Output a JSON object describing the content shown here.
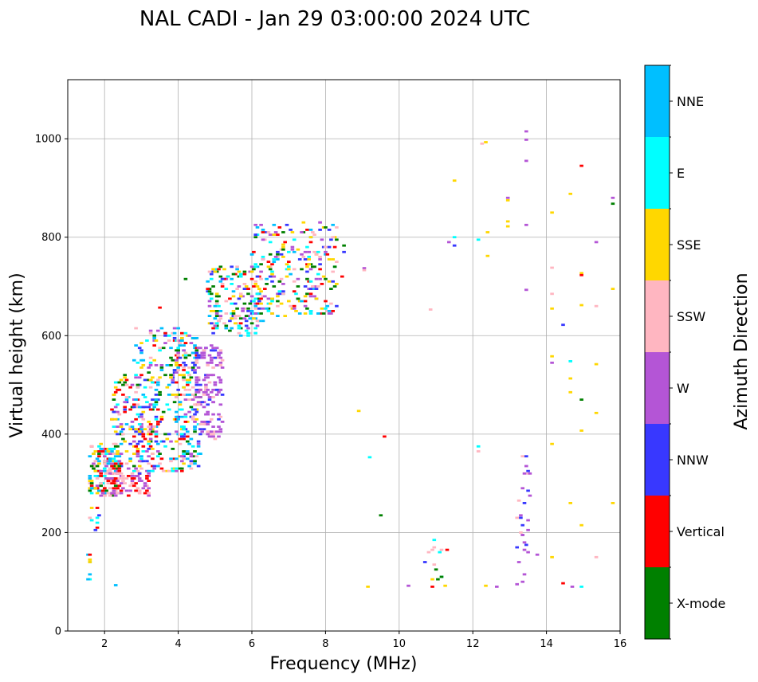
{
  "chart_data": {
    "type": "scatter",
    "title": "NAL CADI - Jan 29 03:00:00 2024 UTC",
    "xlabel": "Frequency (MHz)",
    "ylabel": "Virtual height (km)",
    "xlim": [
      1,
      16
    ],
    "ylim": [
      0,
      1120
    ],
    "xticks": [
      2,
      4,
      6,
      8,
      10,
      12,
      14,
      16
    ],
    "yticks": [
      0,
      200,
      400,
      600,
      800,
      1000
    ],
    "grid": true,
    "colorbar": {
      "label": "Azimuth Direction",
      "categories": [
        {
          "name": "X-mode",
          "color": "#008000"
        },
        {
          "name": "Vertical",
          "color": "#ff0000"
        },
        {
          "name": "NNW",
          "color": "#3838ff"
        },
        {
          "name": "W",
          "color": "#b455d6"
        },
        {
          "name": "SSW",
          "color": "#ffb6c1"
        },
        {
          "name": "SSE",
          "color": "#ffd700"
        },
        {
          "name": "E",
          "color": "#00ffff"
        },
        {
          "name": "NNE",
          "color": "#00bfff"
        }
      ]
    },
    "clusters": [
      {
        "f": [
          1.55,
          1.62
        ],
        "h": [
          90,
          165
        ],
        "n": 8,
        "mix": [
          "Vertical",
          "SSE",
          "E",
          "NNE",
          "SSW"
        ]
      },
      {
        "f": [
          1.55,
          1.85
        ],
        "h": [
          200,
          270
        ],
        "n": 10,
        "mix": [
          "Vertical",
          "SSE",
          "E",
          "NNW",
          "SSW"
        ]
      },
      {
        "f": [
          1.6,
          2.4
        ],
        "h": [
          275,
          380
        ],
        "n": 170,
        "mix": [
          "Vertical",
          "SSE",
          "NNE",
          "SSW",
          "W",
          "E",
          "X-mode"
        ]
      },
      {
        "f": [
          2.0,
          3.3
        ],
        "h": [
          275,
          330
        ],
        "n": 90,
        "mix": [
          "SSW",
          "Vertical",
          "W"
        ]
      },
      {
        "f": [
          2.2,
          3.5
        ],
        "h": [
          330,
          520
        ],
        "n": 180,
        "mix": [
          "Vertical",
          "SSE",
          "E",
          "NNE",
          "SSW",
          "W",
          "X-mode",
          "NNW"
        ]
      },
      {
        "f": [
          2.8,
          4.3
        ],
        "h": [
          320,
          620
        ],
        "n": 200,
        "mix": [
          "Vertical",
          "E",
          "NNE",
          "SSE",
          "X-mode",
          "SSW",
          "W",
          "NNW"
        ]
      },
      {
        "f": [
          3.9,
          4.6
        ],
        "h": [
          330,
          600
        ],
        "n": 180,
        "mix": [
          "X-mode",
          "E",
          "Vertical",
          "SSE",
          "NNE",
          "W",
          "NNW",
          "SSW"
        ]
      },
      {
        "f": [
          4.4,
          5.2
        ],
        "h": [
          390,
          580
        ],
        "n": 150,
        "mix": [
          "W",
          "W",
          "W",
          "SSW",
          "NNW"
        ]
      },
      {
        "f": [
          4.8,
          6.3
        ],
        "h": [
          600,
          740
        ],
        "n": 180,
        "mix": [
          "NNW",
          "NNE",
          "E",
          "W",
          "SSE",
          "Vertical",
          "SSW",
          "X-mode"
        ]
      },
      {
        "f": [
          6.0,
          8.3
        ],
        "h": [
          640,
          830
        ],
        "n": 250,
        "mix": [
          "NNW",
          "W",
          "NNE",
          "E",
          "Vertical",
          "X-mode",
          "SSW",
          "SSE"
        ]
      },
      {
        "f": [
          13.2,
          13.6
        ],
        "h": [
          90,
          370
        ],
        "n": 30,
        "mix": [
          "W",
          "NNW",
          "W",
          "SSW"
        ]
      },
      {
        "f": [
          10.9,
          11.2
        ],
        "h": [
          90,
          190
        ],
        "n": 12,
        "mix": [
          "SSE",
          "E",
          "Vertical",
          "SSW",
          "X-mode"
        ]
      }
    ],
    "points": [
      [
        8.5,
        783,
        "X-mode"
      ],
      [
        8.5,
        770,
        "NNW"
      ],
      [
        8.45,
        720,
        "Vertical"
      ],
      [
        9.05,
        737,
        "W"
      ],
      [
        9.05,
        733,
        "SSW"
      ],
      [
        8.9,
        447,
        "SSE"
      ],
      [
        9.5,
        235,
        "X-mode"
      ],
      [
        9.2,
        353,
        "E"
      ],
      [
        9.6,
        395,
        "Vertical"
      ],
      [
        9.15,
        90,
        "SSE"
      ],
      [
        10.25,
        92,
        "W"
      ],
      [
        10.7,
        140,
        "NNW"
      ],
      [
        10.8,
        160,
        "SSW"
      ],
      [
        10.85,
        653,
        "SSW"
      ],
      [
        11.5,
        915,
        "SSE"
      ],
      [
        11.5,
        783,
        "NNW"
      ],
      [
        11.5,
        800,
        "E"
      ],
      [
        11.35,
        790,
        "W"
      ],
      [
        11.25,
        92,
        "SSE"
      ],
      [
        11.3,
        165,
        "Vertical"
      ],
      [
        12.25,
        990,
        "SSW"
      ],
      [
        12.35,
        993,
        "SSE"
      ],
      [
        12.15,
        795,
        "E"
      ],
      [
        12.4,
        810,
        "SSE"
      ],
      [
        12.4,
        762,
        "SSE"
      ],
      [
        12.15,
        375,
        "E"
      ],
      [
        12.15,
        365,
        "SSW"
      ],
      [
        12.35,
        92,
        "SSE"
      ],
      [
        12.65,
        90,
        "W"
      ],
      [
        12.95,
        880,
        "W"
      ],
      [
        12.95,
        875,
        "SSE"
      ],
      [
        12.95,
        832,
        "SSE"
      ],
      [
        12.95,
        822,
        "SSE"
      ],
      [
        13.45,
        1015,
        "W"
      ],
      [
        13.45,
        998,
        "W"
      ],
      [
        13.45,
        955,
        "W"
      ],
      [
        13.45,
        825,
        "W"
      ],
      [
        13.45,
        693,
        "W"
      ],
      [
        13.75,
        155,
        "W"
      ],
      [
        14.15,
        850,
        "SSE"
      ],
      [
        14.15,
        738,
        "SSW"
      ],
      [
        14.15,
        685,
        "SSW"
      ],
      [
        14.15,
        655,
        "SSE"
      ],
      [
        14.15,
        558,
        "SSE"
      ],
      [
        14.15,
        545,
        "W"
      ],
      [
        14.15,
        380,
        "SSE"
      ],
      [
        14.15,
        150,
        "SSE"
      ],
      [
        14.45,
        622,
        "NNW"
      ],
      [
        14.45,
        97,
        "Vertical"
      ],
      [
        14.65,
        888,
        "SSE"
      ],
      [
        14.65,
        548,
        "E"
      ],
      [
        14.65,
        513,
        "SSE"
      ],
      [
        14.65,
        485,
        "SSE"
      ],
      [
        14.65,
        260,
        "SSE"
      ],
      [
        14.7,
        90,
        "W"
      ],
      [
        14.95,
        945,
        "Vertical"
      ],
      [
        14.95,
        727,
        "SSE"
      ],
      [
        14.95,
        723,
        "Vertical"
      ],
      [
        14.95,
        662,
        "SSE"
      ],
      [
        14.95,
        470,
        "X-mode"
      ],
      [
        14.95,
        407,
        "SSE"
      ],
      [
        14.95,
        215,
        "SSE"
      ],
      [
        14.95,
        90,
        "E"
      ],
      [
        15.35,
        790,
        "W"
      ],
      [
        15.35,
        660,
        "SSW"
      ],
      [
        15.35,
        542,
        "SSE"
      ],
      [
        15.35,
        443,
        "SSE"
      ],
      [
        15.35,
        150,
        "SSW"
      ],
      [
        15.8,
        880,
        "W"
      ],
      [
        15.8,
        868,
        "X-mode"
      ],
      [
        15.8,
        695,
        "SSE"
      ],
      [
        15.8,
        260,
        "SSE"
      ],
      [
        2.3,
        93,
        "NNE"
      ],
      [
        4.2,
        715,
        "X-mode"
      ],
      [
        3.5,
        657,
        "Vertical"
      ],
      [
        1.6,
        140,
        "SSE"
      ]
    ]
  }
}
